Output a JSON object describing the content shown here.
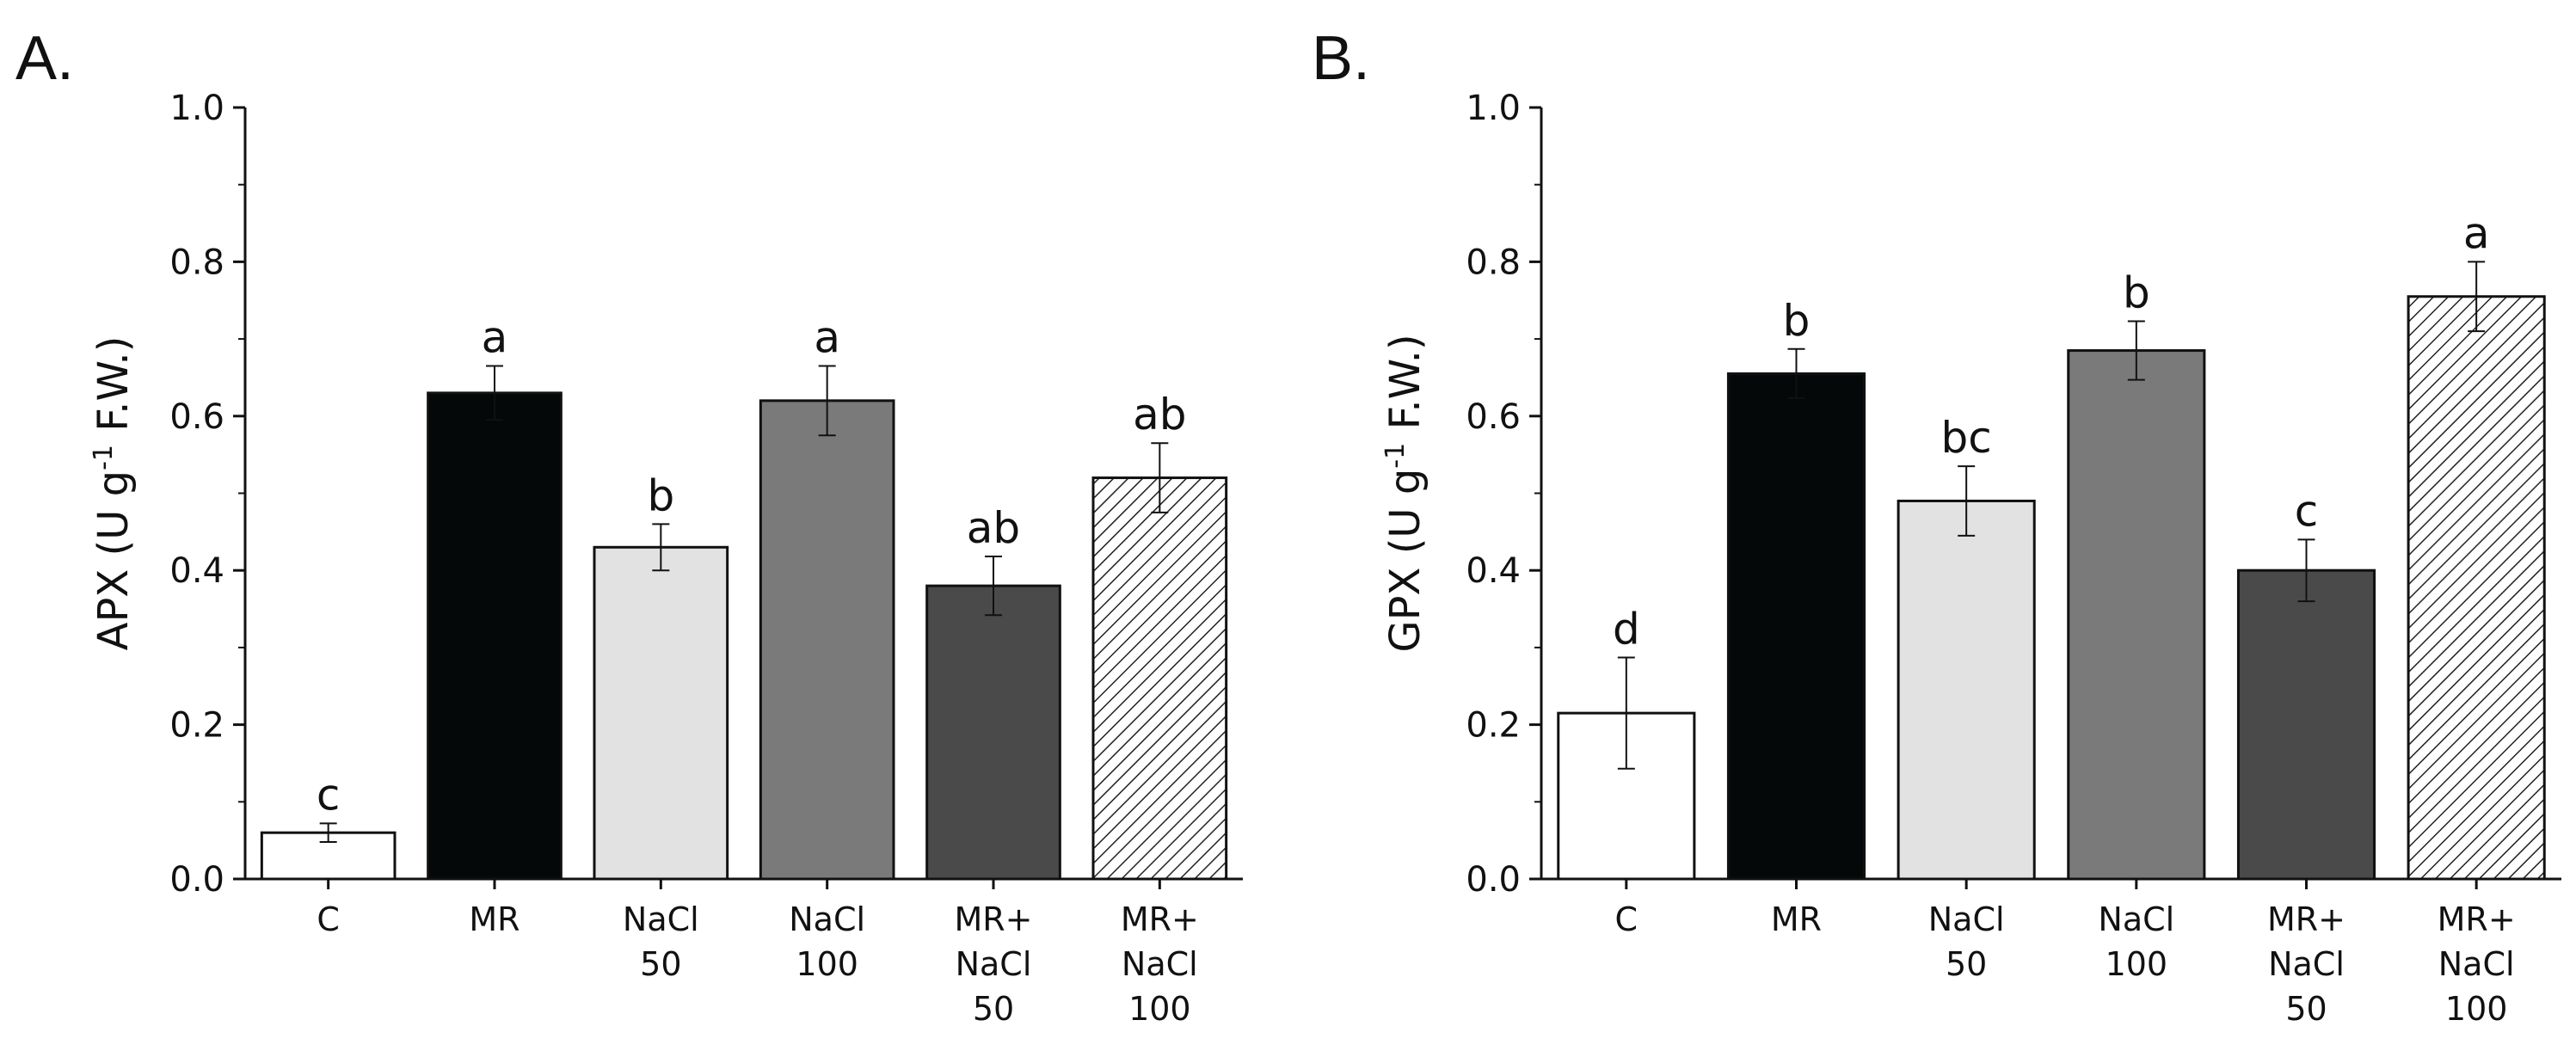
{
  "chart_data": [
    {
      "type": "bar",
      "panel": "A.",
      "ylabel_main": "APX (U g",
      "ylabel_sup": "-1",
      "ylabel_tail": " F.W.)",
      "ylim": [
        0,
        1.0
      ],
      "yticks": [
        "0.0",
        "0.2",
        "0.4",
        "0.6",
        "0.8",
        "1.0"
      ],
      "categories": [
        [
          "C"
        ],
        [
          "MR"
        ],
        [
          "NaCl",
          "50"
        ],
        [
          "NaCl",
          "100"
        ],
        [
          "MR+",
          "NaCl",
          "50"
        ],
        [
          "MR+",
          "NaCl",
          "100"
        ]
      ],
      "values": [
        0.06,
        0.63,
        0.43,
        0.62,
        0.38,
        0.52
      ],
      "errors": [
        0.012,
        0.035,
        0.03,
        0.045,
        0.038,
        0.045
      ],
      "letters": [
        "c",
        "a",
        "b",
        "a",
        "ab",
        "ab"
      ],
      "fills": [
        "#ffffff",
        "#050808",
        "#e2e2e2",
        "#7a7a7a",
        "#4a4a4a",
        "hatch"
      ]
    },
    {
      "type": "bar",
      "panel": "B.",
      "ylabel_main": "GPX (U g",
      "ylabel_sup": "-1",
      "ylabel_tail": " F.W.)",
      "ylim": [
        0,
        1.0
      ],
      "yticks": [
        "0.0",
        "0.2",
        "0.4",
        "0.6",
        "0.8",
        "1.0"
      ],
      "categories": [
        [
          "C"
        ],
        [
          "MR"
        ],
        [
          "NaCl",
          "50"
        ],
        [
          "NaCl",
          "100"
        ],
        [
          "MR+",
          "NaCl",
          "50"
        ],
        [
          "MR+",
          "NaCl",
          "100"
        ]
      ],
      "values": [
        0.215,
        0.655,
        0.49,
        0.685,
        0.4,
        0.755
      ],
      "errors": [
        0.072,
        0.032,
        0.045,
        0.038,
        0.04,
        0.045
      ],
      "letters": [
        "d",
        "b",
        "bc",
        "b",
        "c",
        "a"
      ],
      "fills": [
        "#ffffff",
        "#050808",
        "#e2e2e2",
        "#7a7a7a",
        "#4a4a4a",
        "hatch"
      ]
    }
  ]
}
